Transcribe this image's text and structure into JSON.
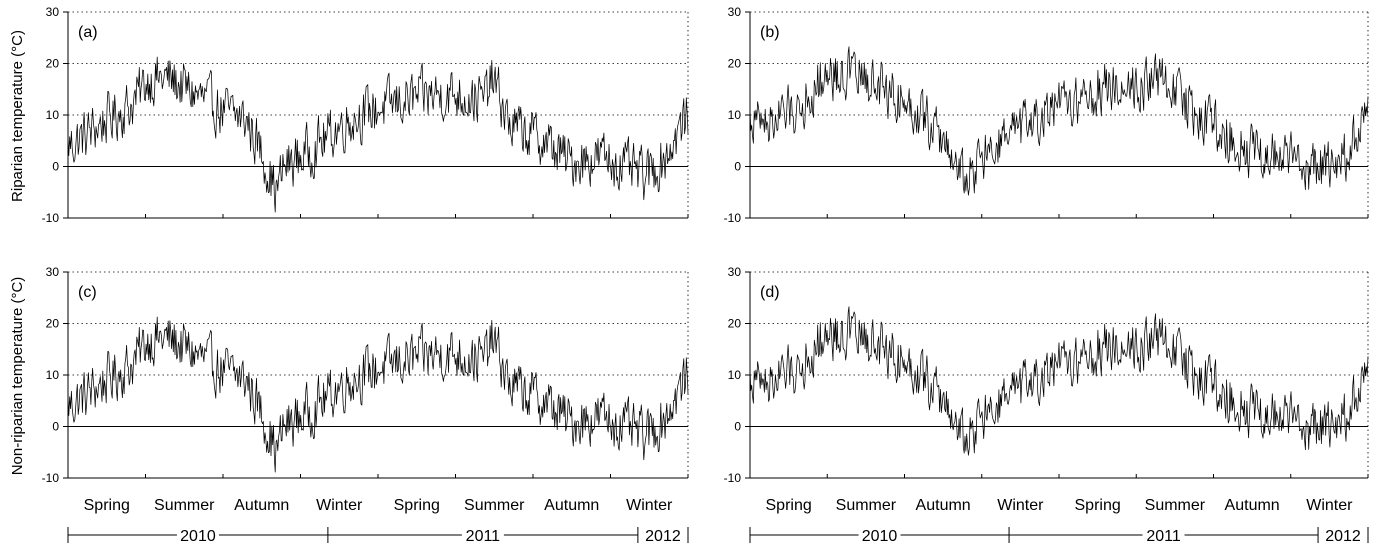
{
  "chart_data": [
    {
      "type": "line",
      "panel_label": "(a)",
      "ylabel": "Riparian temperature (°C)",
      "ylim": [
        -10,
        30
      ],
      "yticks": [
        -10,
        0,
        10,
        20,
        30
      ],
      "grid": "dotted horizontal at 10, 20, 30; solid at 0",
      "series": [
        {
          "name": "",
          "x_start": "2010-03-01",
          "x_end": "2012-02-29",
          "anchors_day_value": [
            [
              0,
              4
            ],
            [
              20,
              6
            ],
            [
              45,
              9
            ],
            [
              75,
              12
            ],
            [
              95,
              17
            ],
            [
              120,
              17
            ],
            [
              150,
              14
            ],
            [
              180,
              11
            ],
            [
              210,
              9
            ],
            [
              230,
              2
            ],
            [
              245,
              -5
            ],
            [
              255,
              0
            ],
            [
              275,
              2
            ],
            [
              300,
              5
            ],
            [
              330,
              9
            ],
            [
              360,
              11
            ],
            [
              400,
              13
            ],
            [
              430,
              14
            ],
            [
              460,
              14
            ],
            [
              490,
              13
            ],
            [
              500,
              17
            ],
            [
              520,
              8
            ],
            [
              560,
              5
            ],
            [
              590,
              1
            ],
            [
              630,
              2
            ],
            [
              680,
              -2
            ],
            [
              700,
              1
            ],
            [
              730,
              10
            ]
          ]
        }
      ]
    },
    {
      "type": "line",
      "panel_label": "(b)",
      "ylabel": "",
      "ylim": [
        -10,
        30
      ],
      "yticks": [
        -10,
        0,
        10,
        20,
        30
      ],
      "grid": "dotted horizontal at 10, 20, 30; solid at 0",
      "series": [
        {
          "name": "",
          "x_start": "2010-03-01",
          "x_end": "2012-02-29",
          "anchors_day_value": [
            [
              0,
              9
            ],
            [
              30,
              9
            ],
            [
              60,
              12
            ],
            [
              90,
              18
            ],
            [
              120,
              18
            ],
            [
              160,
              15
            ],
            [
              190,
              12
            ],
            [
              215,
              8
            ],
            [
              240,
              2
            ],
            [
              255,
              -3
            ],
            [
              270,
              1
            ],
            [
              300,
              5
            ],
            [
              330,
              8
            ],
            [
              360,
              11
            ],
            [
              400,
              14
            ],
            [
              430,
              16
            ],
            [
              460,
              16
            ],
            [
              495,
              17
            ],
            [
              515,
              12
            ],
            [
              550,
              8
            ],
            [
              590,
              3
            ],
            [
              630,
              2
            ],
            [
              670,
              -1
            ],
            [
              700,
              1
            ],
            [
              730,
              10
            ]
          ]
        }
      ]
    },
    {
      "type": "line",
      "panel_label": "(c)",
      "ylabel": "Non-riparian temperature (°C)",
      "ylim": [
        -10,
        30
      ],
      "yticks": [
        -10,
        0,
        10,
        20,
        30
      ],
      "grid": "dotted horizontal at 10, 20, 30; solid at 0",
      "series": [
        {
          "name": "",
          "x_start": "2010-03-01",
          "x_end": "2012-02-29",
          "anchors_day_value": [
            [
              0,
              4
            ],
            [
              20,
              6
            ],
            [
              45,
              9
            ],
            [
              75,
              12
            ],
            [
              95,
              17
            ],
            [
              120,
              17
            ],
            [
              150,
              14
            ],
            [
              180,
              11
            ],
            [
              210,
              9
            ],
            [
              230,
              2
            ],
            [
              245,
              -5
            ],
            [
              255,
              0
            ],
            [
              275,
              2
            ],
            [
              300,
              5
            ],
            [
              330,
              9
            ],
            [
              360,
              11
            ],
            [
              400,
              13
            ],
            [
              430,
              14
            ],
            [
              460,
              14
            ],
            [
              490,
              13
            ],
            [
              500,
              17
            ],
            [
              520,
              8
            ],
            [
              560,
              5
            ],
            [
              590,
              1
            ],
            [
              630,
              2
            ],
            [
              680,
              -2
            ],
            [
              700,
              1
            ],
            [
              730,
              10
            ]
          ]
        }
      ]
    },
    {
      "type": "line",
      "panel_label": "(d)",
      "ylabel": "",
      "ylim": [
        -10,
        30
      ],
      "yticks": [
        -10,
        0,
        10,
        20,
        30
      ],
      "grid": "dotted horizontal at 10, 20, 30; solid at 0",
      "series": [
        {
          "name": "",
          "x_start": "2010-03-01",
          "x_end": "2012-02-29",
          "anchors_day_value": [
            [
              0,
              9
            ],
            [
              30,
              9
            ],
            [
              60,
              12
            ],
            [
              90,
              18
            ],
            [
              120,
              18
            ],
            [
              160,
              15
            ],
            [
              190,
              12
            ],
            [
              215,
              8
            ],
            [
              240,
              2
            ],
            [
              255,
              -3
            ],
            [
              270,
              1
            ],
            [
              300,
              5
            ],
            [
              330,
              8
            ],
            [
              360,
              11
            ],
            [
              400,
              14
            ],
            [
              430,
              16
            ],
            [
              460,
              16
            ],
            [
              495,
              17
            ],
            [
              515,
              12
            ],
            [
              550,
              8
            ],
            [
              590,
              3
            ],
            [
              630,
              2
            ],
            [
              670,
              -1
            ],
            [
              700,
              1
            ],
            [
              730,
              10
            ]
          ]
        }
      ]
    }
  ],
  "x_axis": {
    "seasons": [
      "Spring",
      "Summer",
      "Autumn",
      "Winter",
      "Spring",
      "Summer",
      "Autumn",
      "Winter"
    ],
    "years": [
      "2010",
      "2011",
      "2012"
    ]
  }
}
